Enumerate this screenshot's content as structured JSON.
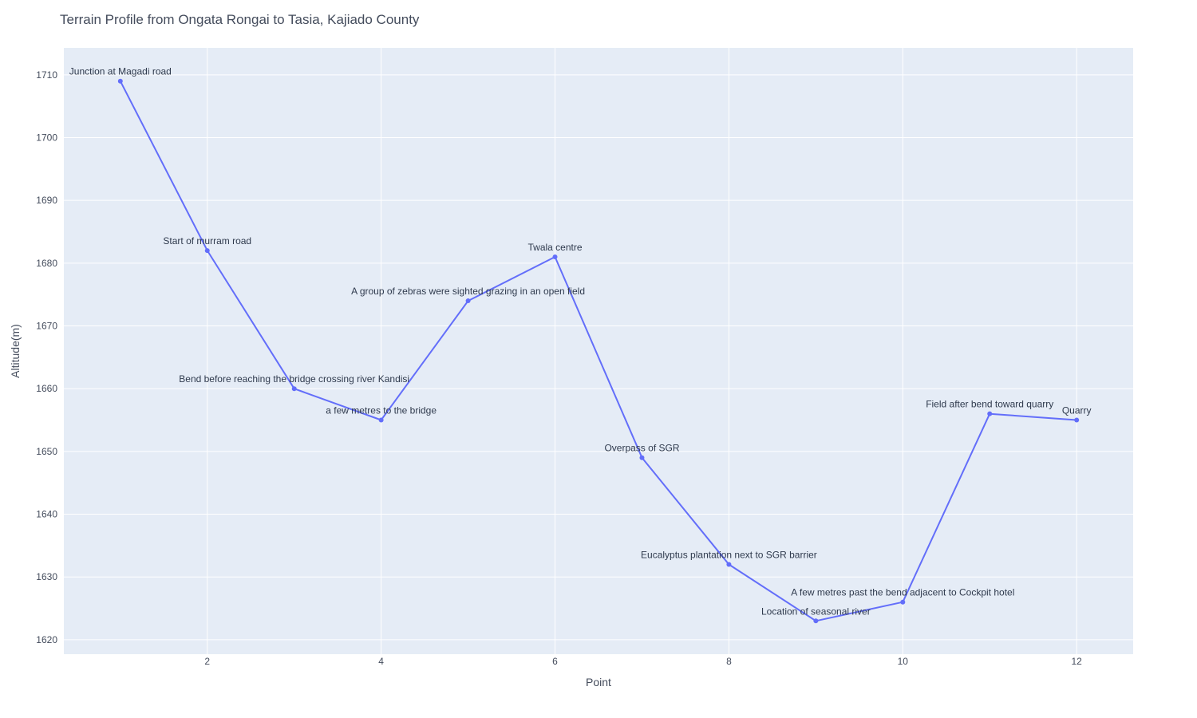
{
  "chart_data": {
    "type": "line",
    "title": "Terrain Profile from Ongata Rongai to Tasia, Kajiado County",
    "xlabel": "Point",
    "ylabel": "Altitude(m)",
    "xlim": [
      0.35,
      12.65
    ],
    "ylim": [
      1617.7,
      1714.3
    ],
    "xticks": [
      2,
      4,
      6,
      8,
      10,
      12
    ],
    "yticks": [
      1620,
      1630,
      1640,
      1650,
      1660,
      1670,
      1680,
      1690,
      1700,
      1710
    ],
    "grid": true,
    "line_color": "#636efa",
    "plot_background": "#e5ecf6",
    "points": [
      {
        "x": 1,
        "y": 1709,
        "label": "Junction at Magadi road"
      },
      {
        "x": 2,
        "y": 1682,
        "label": "Start of murram road"
      },
      {
        "x": 3,
        "y": 1660,
        "label": "Bend before reaching the bridge crossing river Kandisi"
      },
      {
        "x": 4,
        "y": 1655,
        "label": "a few metres to the bridge"
      },
      {
        "x": 5,
        "y": 1674,
        "label": "A group of zebras were sighted grazing in an open field"
      },
      {
        "x": 6,
        "y": 1681,
        "label": "Twala centre"
      },
      {
        "x": 7,
        "y": 1649,
        "label": "Overpass of SGR"
      },
      {
        "x": 8,
        "y": 1632,
        "label": "Eucalyptus plantation next to SGR barrier"
      },
      {
        "x": 9,
        "y": 1623,
        "label": "Location of seasonal river"
      },
      {
        "x": 10,
        "y": 1626,
        "label": "A few metres past the bend adjacent to Cockpit hotel"
      },
      {
        "x": 11,
        "y": 1656,
        "label": "Field after bend toward quarry"
      },
      {
        "x": 12,
        "y": 1655,
        "label": "Quarry"
      }
    ]
  }
}
